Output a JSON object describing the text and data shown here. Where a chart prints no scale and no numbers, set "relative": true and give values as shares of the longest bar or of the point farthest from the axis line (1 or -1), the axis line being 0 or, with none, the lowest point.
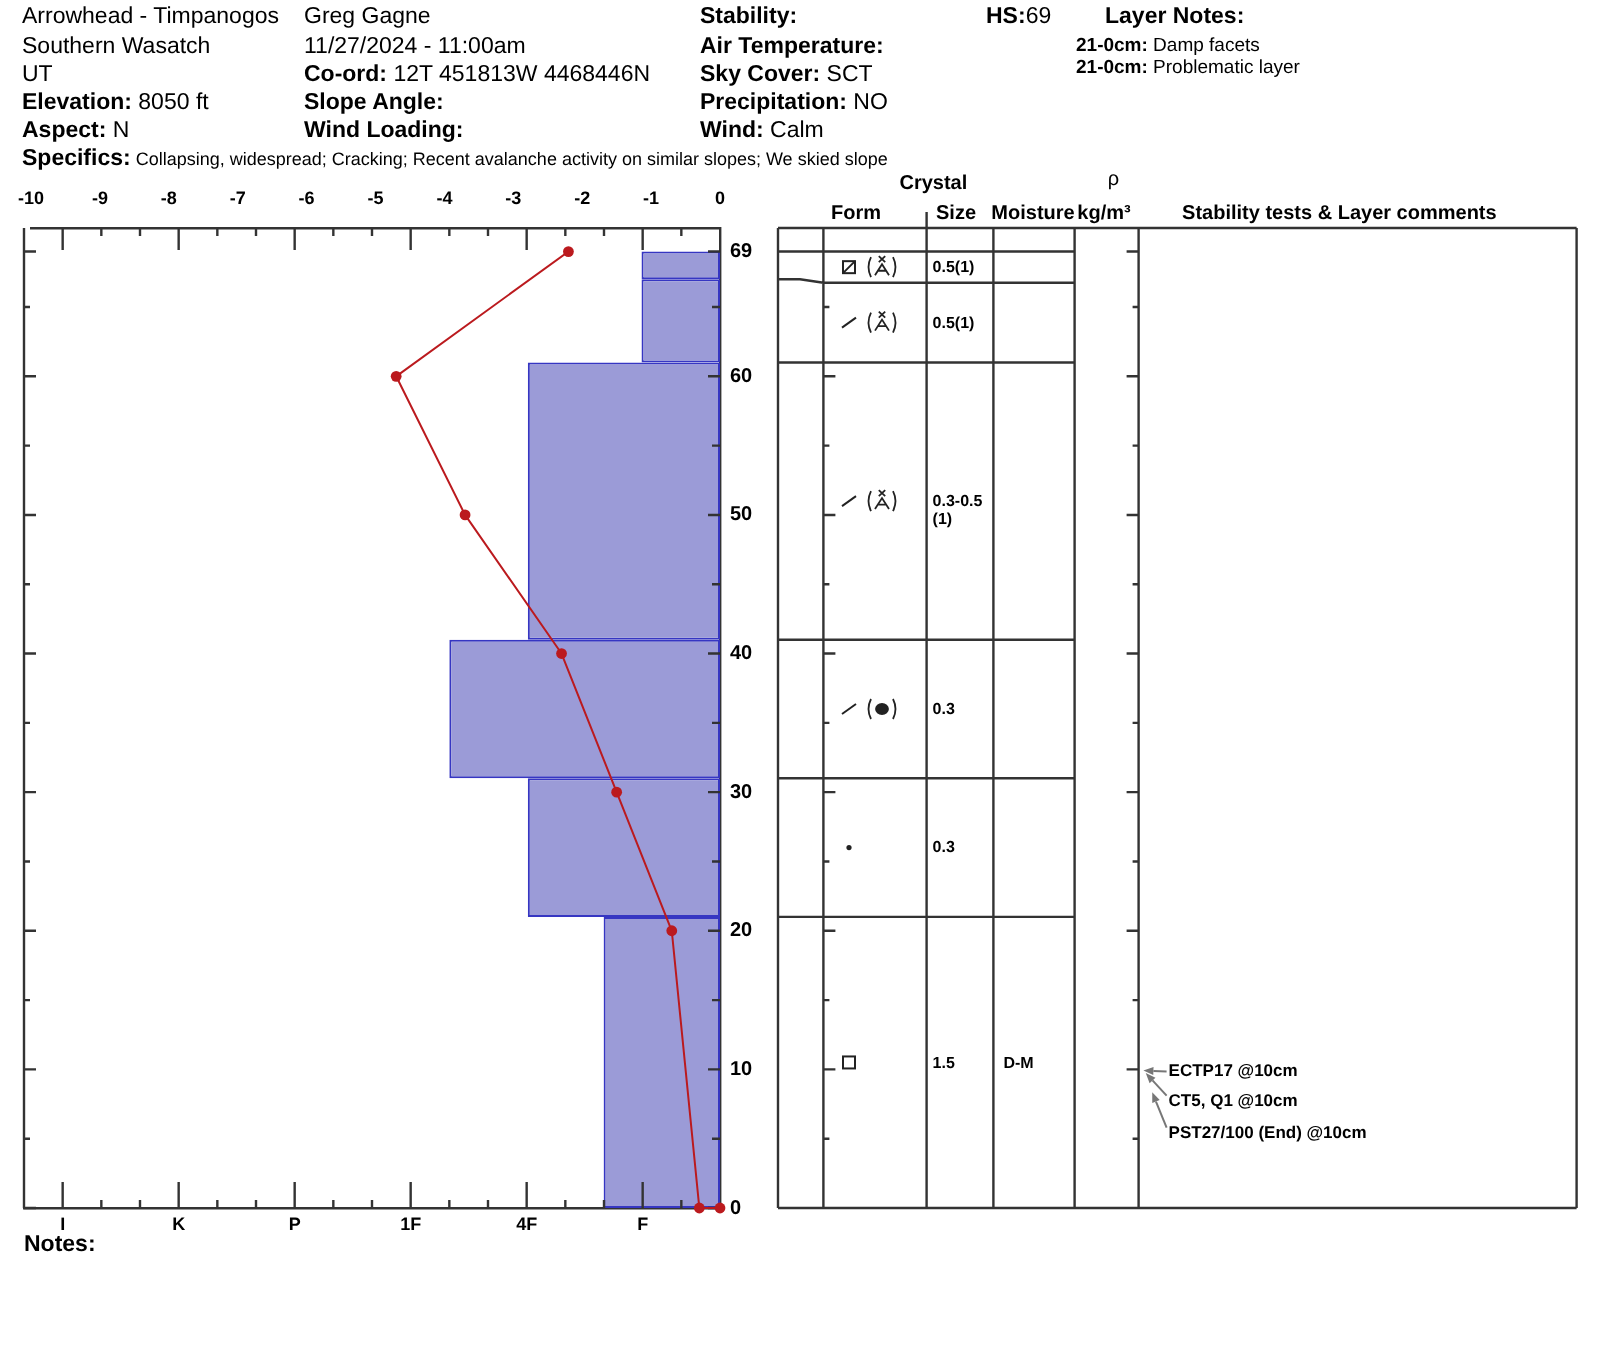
{
  "chart_data": [
    {
      "type": "bar",
      "orientation": "horizontal",
      "relative": true,
      "ylim": [
        0,
        70.7
      ],
      "yticks": [
        0,
        {
          "value": 5,
          "label": null
        },
        10,
        {
          "value": 15,
          "label": null
        },
        20,
        {
          "value": 25,
          "label": null
        },
        30,
        {
          "value": 35,
          "label": null
        },
        40,
        {
          "value": 45,
          "label": null
        },
        50,
        {
          "value": 55,
          "label": null
        },
        60,
        {
          "value": 65,
          "label": null
        },
        69
      ],
      "series": [
        {
          "color": "#9b9bd7",
          "x": [
            10.5,
            26,
            36,
            51,
            64,
            68
          ],
          "values": [
            0.43,
            0.71,
            1,
            0.71,
            0.29,
            0.29
          ]
        }
      ],
      "annotations": [
        "Arrowhead - Timpanogos",
        "Southern Wasatch",
        "UT",
        "Elevation: 8050 ft",
        "Aspect: N",
        "Greg Gagne",
        "11/27/2024 - 11:00am",
        "Co-ord: 12T 451813W 4468446N",
        "Slope Angle:",
        "Wind Loading:",
        "Stability:",
        "Air Temperature:",
        "Sky Cover: SCT",
        "Precipitation: NO",
        "Wind: Calm",
        "HS:69",
        "Layer Notes:",
        "21-0cm: Damp facets",
        "21-0cm: Problematic layer",
        "Specifics: Collapsing, widespread; Cracking; Recent avalanche activity on similar slopes; We skied slope",
        "Notes:",
        "I",
        "K",
        "P",
        "1F",
        "4F",
        "F"
      ]
    },
    {
      "type": "line",
      "orientation": "horizontal",
      "tick_labels": "x",
      "xlim": [
        -10,
        0
      ],
      "xticks": [
        -10,
        -9,
        -8,
        -7,
        -6,
        -5,
        -4,
        -3,
        -2,
        -1,
        0
      ],
      "ylim": [
        0,
        70.7
      ],
      "series": [
        {
          "color": "#bb1a1e",
          "marker": "circle",
          "x": [
            69,
            60,
            50,
            40,
            30,
            20,
            0,
            0
          ],
          "values": [
            -2.2,
            -4.7,
            -3.7,
            -2.3,
            -1.5,
            -0.7,
            -0.3,
            0
          ]
        }
      ]
    },
    {
      "type": "other",
      "annotations": [
        "Crystal",
        "Form",
        "Size",
        "Moisture",
        "ρ",
        "kg/m³",
        "Stability tests & Layer comments",
        "0.5(1)",
        "0.5(1)",
        "0.3-0.5 (1)",
        "0.3",
        "0.3",
        "1.5",
        "D-M",
        "ECTP17 @10cm",
        "CT5, Q1 @10cm",
        "PST27/100 (End) @10cm"
      ]
    }
  ]
}
